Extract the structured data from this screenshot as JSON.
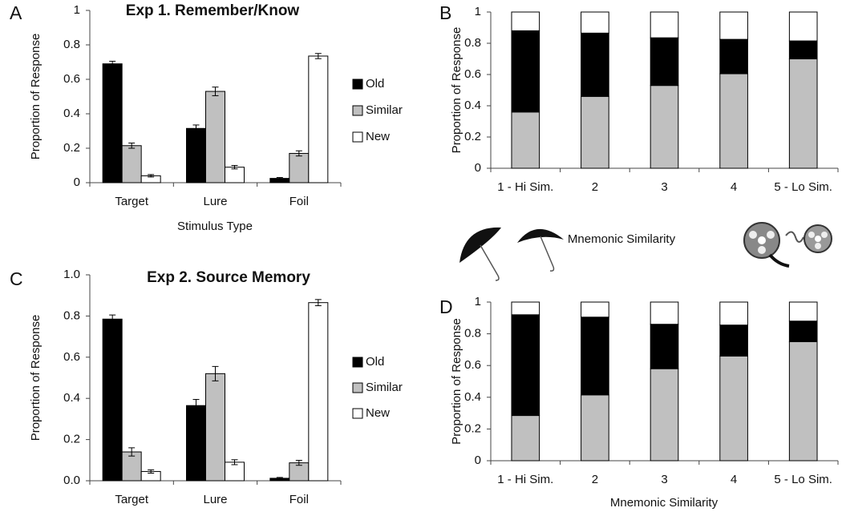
{
  "chart_data": [
    {
      "type": "bar",
      "panel": "A",
      "title": "Exp 1. Remember/Know",
      "ylabel": "Proportion of Response",
      "xlabel": "Stimulus Type",
      "categories": [
        "Target",
        "Lure",
        "Foil"
      ],
      "series": [
        {
          "name": "Old",
          "color": "#000000",
          "values": [
            0.69,
            0.315,
            0.025
          ],
          "errors": [
            0.015,
            0.02,
            0.005
          ]
        },
        {
          "name": "Similar",
          "color": "#c0c0c0",
          "values": [
            0.215,
            0.53,
            0.17
          ],
          "errors": [
            0.015,
            0.025,
            0.015
          ]
        },
        {
          "name": "New",
          "color": "#ffffff",
          "values": [
            0.04,
            0.09,
            0.735
          ],
          "errors": [
            0.007,
            0.01,
            0.015
          ]
        }
      ],
      "ylim": [
        0,
        1
      ],
      "yticks": [
        0,
        0.2,
        0.4,
        0.6,
        0.8,
        1
      ],
      "legend": "right"
    },
    {
      "type": "stacked_bar",
      "panel": "B",
      "ylabel": "Proportion of Response",
      "xlabel": "Mnemonic Similarity",
      "categories": [
        "1 - Hi Sim.",
        "2",
        "3",
        "4",
        "5 - Lo Sim."
      ],
      "series": [
        {
          "color": "#c0c0c0",
          "values": [
            0.36,
            0.46,
            0.53,
            0.605,
            0.7
          ]
        },
        {
          "color": "#000000",
          "values": [
            0.52,
            0.405,
            0.305,
            0.22,
            0.115
          ]
        },
        {
          "color": "#ffffff",
          "values": [
            0.12,
            0.135,
            0.165,
            0.175,
            0.185
          ]
        }
      ],
      "ylim": [
        0,
        1
      ],
      "yticks": [
        0,
        0.2,
        0.4,
        0.6,
        0.8,
        1
      ]
    },
    {
      "type": "bar",
      "panel": "C",
      "title": "Exp 2. Source Memory",
      "ylabel": "Proportion of Response",
      "categories": [
        "Target",
        "Lure",
        "Foil"
      ],
      "series": [
        {
          "name": "Old",
          "color": "#000000",
          "values": [
            0.785,
            0.365,
            0.012
          ],
          "errors": [
            0.02,
            0.03,
            0.004
          ]
        },
        {
          "name": "Similar",
          "color": "#c0c0c0",
          "values": [
            0.14,
            0.52,
            0.087
          ],
          "errors": [
            0.02,
            0.035,
            0.012
          ]
        },
        {
          "name": "New",
          "color": "#ffffff",
          "values": [
            0.045,
            0.09,
            0.865
          ],
          "errors": [
            0.008,
            0.012,
            0.015
          ]
        }
      ],
      "ylim": [
        0,
        1
      ],
      "yticks": [
        {
          "value": 0,
          "label": "0.0"
        },
        0.2,
        0.4,
        0.6,
        0.8,
        {
          "value": 1,
          "label": "1.0"
        }
      ],
      "legend": "right"
    },
    {
      "type": "stacked_bar",
      "panel": "D",
      "ylabel": "Proportion of Response",
      "xlabel": "Mnemonic Similarity",
      "categories": [
        "1 - Hi Sim.",
        "2",
        "3",
        "4",
        "5 - Lo Sim."
      ],
      "series": [
        {
          "color": "#c0c0c0",
          "values": [
            0.285,
            0.415,
            0.58,
            0.66,
            0.75
          ]
        },
        {
          "color": "#000000",
          "values": [
            0.635,
            0.49,
            0.28,
            0.195,
            0.13
          ]
        },
        {
          "color": "#ffffff",
          "values": [
            0.08,
            0.095,
            0.14,
            0.145,
            0.12
          ]
        }
      ],
      "ylim": [
        0,
        1
      ],
      "yticks": [
        0,
        0.2,
        0.4,
        0.6,
        0.8,
        1
      ]
    }
  ]
}
